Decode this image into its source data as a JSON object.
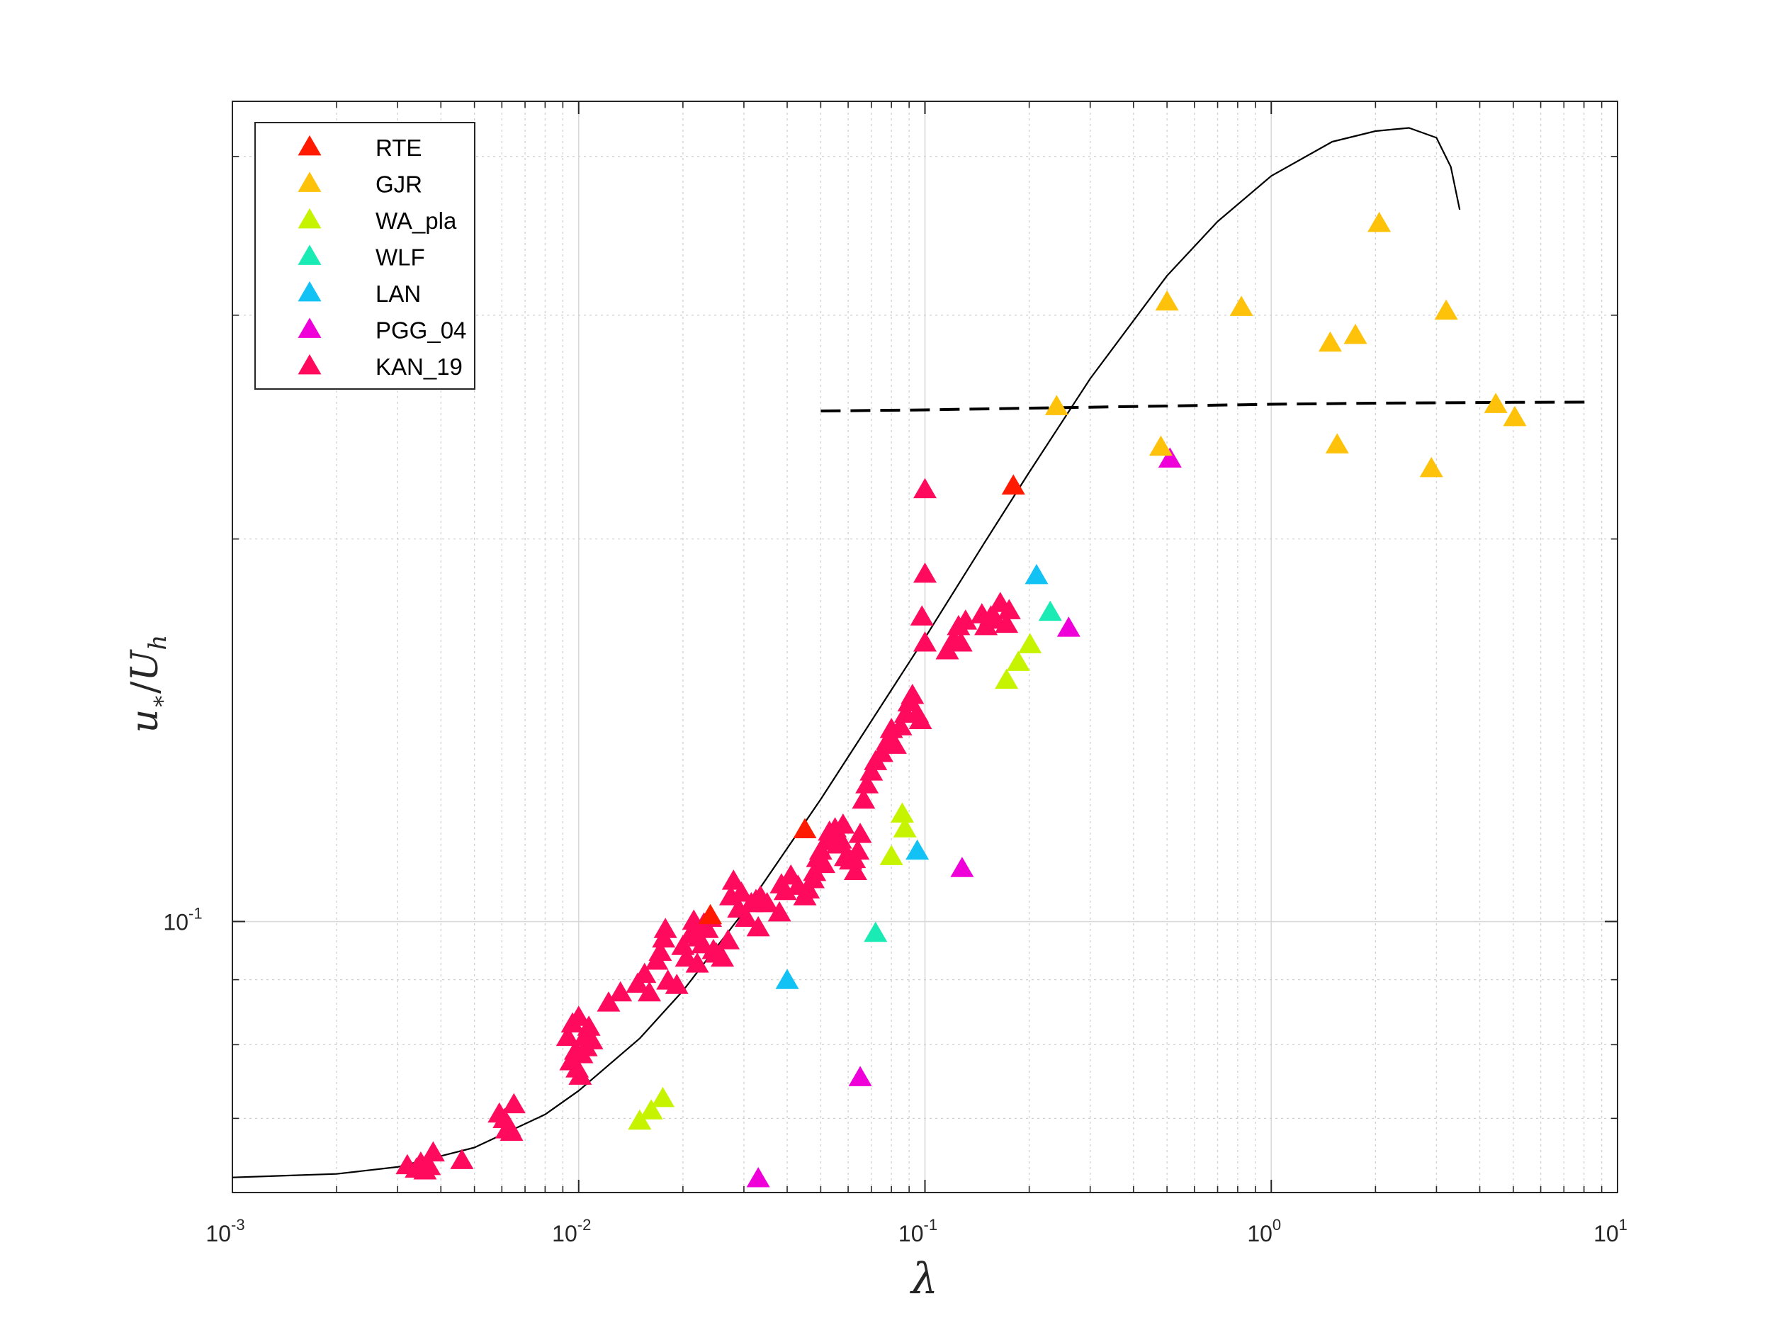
{
  "chart_data": {
    "type": "scatter",
    "xlabel": "λ",
    "ylabel": "u*/Uh",
    "ylabel_parts": {
      "u": "u",
      "star": "∗",
      "slash": "/",
      "U": "U",
      "h": "h"
    },
    "xscale": "log",
    "yscale": "log",
    "xlim": [
      0.001,
      10
    ],
    "ylim": [
      0.0612,
      0.442
    ],
    "x_ticks": [
      {
        "base": "10",
        "exp": "-3",
        "value": 0.001
      },
      {
        "base": "10",
        "exp": "-2",
        "value": 0.01
      },
      {
        "base": "10",
        "exp": "-1",
        "value": 0.1
      },
      {
        "base": "10",
        "exp": "0",
        "value": 1
      },
      {
        "base": "10",
        "exp": "1",
        "value": 10
      }
    ],
    "y_ticks": [
      {
        "base": "10",
        "exp": "-1",
        "value": 0.1
      }
    ],
    "grid": true,
    "legend": "top-left",
    "series": [
      {
        "name": "RTE",
        "color": "#ff1a00",
        "points": [
          [
            0.18,
            0.22
          ],
          [
            0.024,
            0.101
          ],
          [
            0.045,
            0.118
          ]
        ]
      },
      {
        "name": "GJR",
        "color": "#ffc20a",
        "points": [
          [
            0.24,
            0.254
          ],
          [
            0.48,
            0.236
          ],
          [
            0.5,
            0.307
          ],
          [
            0.82,
            0.304
          ],
          [
            1.48,
            0.285
          ],
          [
            1.55,
            0.237
          ],
          [
            1.75,
            0.289
          ],
          [
            2.05,
            0.354
          ],
          [
            2.9,
            0.227
          ],
          [
            3.2,
            0.302
          ],
          [
            4.45,
            0.255
          ],
          [
            5.05,
            0.249
          ]
        ]
      },
      {
        "name": "WA_pla",
        "color": "#c6f400",
        "points": [
          [
            0.015,
            0.0696
          ],
          [
            0.0162,
            0.0709
          ],
          [
            0.0175,
            0.0725
          ],
          [
            0.08,
            0.1124
          ],
          [
            0.086,
            0.1214
          ],
          [
            0.0875,
            0.1182
          ],
          [
            0.172,
            0.1547
          ],
          [
            0.186,
            0.1598
          ],
          [
            0.201,
            0.165
          ]
        ]
      },
      {
        "name": "WLF",
        "color": "#1aebb4",
        "points": [
          [
            0.072,
            0.0978
          ],
          [
            0.23,
            0.175
          ]
        ]
      },
      {
        "name": "LAN",
        "color": "#12c2f5",
        "points": [
          [
            0.04,
            0.0898
          ],
          [
            0.095,
            0.1135
          ],
          [
            0.21,
            0.187
          ]
        ]
      },
      {
        "name": "PGG_04",
        "color": "#f000d8",
        "points": [
          [
            0.033,
            0.0627
          ],
          [
            0.065,
            0.0753
          ],
          [
            0.128,
            0.11
          ],
          [
            0.51,
            0.231
          ],
          [
            0.26,
            0.17
          ]
        ]
      },
      {
        "name": "KAN_19",
        "color": "#ff0a5c",
        "points": [
          [
            0.0032,
            0.0642
          ],
          [
            0.0034,
            0.0638
          ],
          [
            0.0035,
            0.0645
          ],
          [
            0.0036,
            0.0636
          ],
          [
            0.0037,
            0.0641
          ],
          [
            0.0038,
            0.0657
          ],
          [
            0.0059,
            0.0705
          ],
          [
            0.0061,
            0.0698
          ],
          [
            0.0063,
            0.0688
          ],
          [
            0.0065,
            0.0717
          ],
          [
            0.0064,
            0.0682
          ],
          [
            0.0062,
            0.0685
          ],
          [
            0.0093,
            0.081
          ],
          [
            0.0096,
            0.083
          ],
          [
            0.0098,
            0.079
          ],
          [
            0.01,
            0.084
          ],
          [
            0.0102,
            0.0785
          ],
          [
            0.0104,
            0.081
          ],
          [
            0.0107,
            0.0825
          ],
          [
            0.0095,
            0.0775
          ],
          [
            0.0099,
            0.0765
          ],
          [
            0.0101,
            0.0755
          ],
          [
            0.0105,
            0.0795
          ],
          [
            0.0109,
            0.0805
          ],
          [
            0.0122,
            0.0862
          ],
          [
            0.0132,
            0.0878
          ],
          [
            0.0148,
            0.0892
          ],
          [
            0.0155,
            0.0908
          ],
          [
            0.016,
            0.0878
          ],
          [
            0.0168,
            0.093
          ],
          [
            0.0172,
            0.0945
          ],
          [
            0.0176,
            0.0968
          ],
          [
            0.0178,
            0.0985
          ],
          [
            0.0181,
            0.0897
          ],
          [
            0.0192,
            0.089
          ],
          [
            0.02,
            0.0955
          ],
          [
            0.0205,
            0.0935
          ],
          [
            0.021,
            0.0975
          ],
          [
            0.0215,
            0.1
          ],
          [
            0.0222,
            0.097
          ],
          [
            0.0228,
            0.0958
          ],
          [
            0.023,
            0.0995
          ],
          [
            0.0235,
            0.0985
          ],
          [
            0.024,
            0.1005
          ],
          [
            0.0245,
            0.0948
          ],
          [
            0.025,
            0.0942
          ],
          [
            0.026,
            0.0935
          ],
          [
            0.027,
            0.0965
          ],
          [
            0.0275,
            0.1045
          ],
          [
            0.028,
            0.1075
          ],
          [
            0.029,
            0.1022
          ],
          [
            0.0295,
            0.1052
          ],
          [
            0.0305,
            0.1005
          ],
          [
            0.0315,
            0.1032
          ],
          [
            0.0325,
            0.1038
          ],
          [
            0.0335,
            0.1045
          ],
          [
            0.035,
            0.1032
          ],
          [
            0.0385,
            0.1068
          ],
          [
            0.0395,
            0.1055
          ],
          [
            0.041,
            0.1085
          ],
          [
            0.043,
            0.1065
          ],
          [
            0.045,
            0.1045
          ],
          [
            0.046,
            0.1058
          ],
          [
            0.0475,
            0.1078
          ],
          [
            0.048,
            0.1092
          ],
          [
            0.049,
            0.112
          ],
          [
            0.05,
            0.1135
          ],
          [
            0.051,
            0.1108
          ],
          [
            0.052,
            0.1155
          ],
          [
            0.053,
            0.1175
          ],
          [
            0.054,
            0.1165
          ],
          [
            0.055,
            0.1182
          ],
          [
            0.056,
            0.1148
          ],
          [
            0.057,
            0.1158
          ],
          [
            0.058,
            0.119
          ],
          [
            0.059,
            0.1122
          ],
          [
            0.06,
            0.1122
          ],
          [
            0.061,
            0.1115
          ],
          [
            0.0625,
            0.1118
          ],
          [
            0.063,
            0.1094
          ],
          [
            0.064,
            0.1135
          ],
          [
            0.065,
            0.117
          ],
          [
            0.0665,
            0.1245
          ],
          [
            0.068,
            0.128
          ],
          [
            0.07,
            0.131
          ],
          [
            0.072,
            0.1335
          ],
          [
            0.075,
            0.1355
          ],
          [
            0.078,
            0.1385
          ],
          [
            0.08,
            0.1415
          ],
          [
            0.082,
            0.1375
          ],
          [
            0.085,
            0.1422
          ],
          [
            0.088,
            0.1455
          ],
          [
            0.09,
            0.1485
          ],
          [
            0.092,
            0.1505
          ],
          [
            0.095,
            0.1455
          ],
          [
            0.097,
            0.1438
          ],
          [
            0.1,
            0.1655
          ],
          [
            0.1,
            0.1875
          ],
          [
            0.1,
            0.2185
          ],
          [
            0.098,
            0.1735
          ],
          [
            0.116,
            0.1632
          ],
          [
            0.121,
            0.1665
          ],
          [
            0.125,
            0.1705
          ],
          [
            0.127,
            0.1655
          ],
          [
            0.131,
            0.1722
          ],
          [
            0.146,
            0.1742
          ],
          [
            0.15,
            0.1705
          ],
          [
            0.155,
            0.1735
          ],
          [
            0.16,
            0.1725
          ],
          [
            0.165,
            0.1778
          ],
          [
            0.172,
            0.1712
          ],
          [
            0.175,
            0.1755
          ],
          [
            0.0046,
            0.0648
          ],
          [
            0.022,
            0.0925
          ],
          [
            0.033,
            0.0988
          ],
          [
            0.038,
            0.1015
          ]
        ]
      }
    ],
    "reference_curves": [
      {
        "style": "solid",
        "color": "#000000",
        "points": [
          [
            0.001,
            0.0629
          ],
          [
            0.002,
            0.0633
          ],
          [
            0.003,
            0.0641
          ],
          [
            0.005,
            0.0664
          ],
          [
            0.008,
            0.0705
          ],
          [
            0.01,
            0.0736
          ],
          [
            0.015,
            0.0809
          ],
          [
            0.02,
            0.0882
          ],
          [
            0.03,
            0.1018
          ],
          [
            0.05,
            0.1248
          ],
          [
            0.07,
            0.1438
          ],
          [
            0.1,
            0.1672
          ],
          [
            0.15,
            0.1995
          ],
          [
            0.2,
            0.2257
          ],
          [
            0.3,
            0.2674
          ],
          [
            0.5,
            0.3222
          ],
          [
            0.7,
            0.3555
          ],
          [
            1.0,
            0.3861
          ],
          [
            1.5,
            0.4108
          ],
          [
            2.0,
            0.4188
          ],
          [
            2.5,
            0.4212
          ],
          [
            3.0,
            0.4138
          ],
          [
            3.3,
            0.3925
          ],
          [
            3.5,
            0.3632
          ]
        ]
      },
      {
        "style": "dashed",
        "color": "#000000",
        "points": [
          [
            0.05,
            0.2522
          ],
          [
            0.1,
            0.2527
          ],
          [
            0.2,
            0.2535
          ],
          [
            0.5,
            0.2545
          ],
          [
            1.0,
            0.2553
          ],
          [
            2.0,
            0.2558
          ],
          [
            5.0,
            0.2562
          ],
          [
            8.5,
            0.2563
          ]
        ]
      }
    ]
  }
}
